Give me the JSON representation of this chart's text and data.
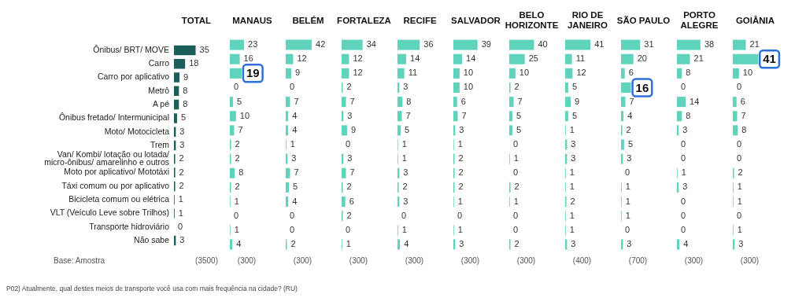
{
  "chart_data": [
    {
      "type": "bar",
      "orientation": "horizontal",
      "title": "TOTAL",
      "xlabel": "(3500)",
      "color": "#1b5e5b",
      "tick_labels": "y",
      "grid": false,
      "legend": false,
      "data_labels": true,
      "categories": [
        "Ônibus/ BRT/ MOVE",
        "Carro",
        "Carro por aplicativo",
        "Metrô",
        "A pé",
        "Ônibus fretado/ Intermunicipal",
        "Moto/ Motocicleta",
        "Trem",
        "Van/ Kombi/ lotação ou lotada/ micro-ônibus/ amarelinho e outros",
        "Moto por aplicativo/ Mototáxi",
        "Táxi comum ou por aplicativo",
        "Bicicleta comum ou elétrica",
        "VLT (Veículo Leve sobre Trilhos)",
        "Transporte hidroviário",
        "Não sabe"
      ],
      "values": [
        35,
        18,
        9,
        8,
        8,
        5,
        3,
        3,
        2,
        2,
        2,
        1,
        1,
        0,
        3
      ],
      "annotations": [
        "Base: Amostra",
        "P02) Atualmente, qual destes meios de transporte você usa com mais frequência na cidade? (RU)"
      ]
    },
    {
      "type": "bar",
      "orientation": "horizontal",
      "title": "MANAUS",
      "xlabel": "(300)",
      "color": "#5fd3bb",
      "tick_labels": false,
      "grid": false,
      "legend": false,
      "categories": [
        "Ônibus/ BRT/ MOVE",
        "Carro",
        "Carro por aplicativo",
        "Metrô",
        "A pé",
        "Ônibus fretado/ Intermunicipal",
        "Moto/ Motocicleta",
        "Trem",
        "Van/ Kombi/ lotação ou lotada/ micro-ônibus/ amarelinho e outros",
        "Moto por aplicativo/ Mototáxi",
        "Táxi comum ou por aplicativo",
        "Bicicleta comum ou elétrica",
        "VLT (Veículo Leve sobre Trilhos)",
        "Transporte hidroviário",
        "Não sabe"
      ],
      "values": [
        23,
        16,
        19,
        0,
        5,
        10,
        7,
        2,
        2,
        8,
        2,
        1,
        0,
        1,
        4
      ],
      "value_labels": [
        "23",
        "16",
        null,
        "0",
        "5",
        "10",
        "7",
        "2",
        "2",
        "8",
        "2",
        "1",
        "0",
        "1",
        "4"
      ],
      "annotations": [
        {
          "text": "19",
          "x": 19,
          "y": "Carro por aplicativo"
        }
      ]
    },
    {
      "type": "bar",
      "orientation": "horizontal",
      "title": "BELÉM",
      "xlabel": "(300)",
      "color": "#5fd3bb",
      "tick_labels": false,
      "grid": false,
      "legend": false,
      "data_labels": true,
      "categories": [
        "Ônibus/ BRT/ MOVE",
        "Carro",
        "Carro por aplicativo",
        "Metrô",
        "A pé",
        "Ônibus fretado/ Intermunicipal",
        "Moto/ Motocicleta",
        "Trem",
        "Van/ Kombi/ lotação ou lotada/ micro-ônibus/ amarelinho e outros",
        "Moto por aplicativo/ Mototáxi",
        "Táxi comum ou por aplicativo",
        "Bicicleta comum ou elétrica",
        "VLT (Veículo Leve sobre Trilhos)",
        "Transporte hidroviário",
        "Não sabe"
      ],
      "values": [
        42,
        12,
        9,
        0,
        7,
        4,
        4,
        1,
        3,
        7,
        5,
        4,
        0,
        0,
        2
      ]
    },
    {
      "type": "bar",
      "orientation": "horizontal",
      "title": "FORTALEZA",
      "xlabel": "(300)",
      "color": "#5fd3bb",
      "tick_labels": false,
      "grid": false,
      "legend": false,
      "data_labels": true,
      "categories": [
        "Ônibus/ BRT/ MOVE",
        "Carro",
        "Carro por aplicativo",
        "Metrô",
        "A pé",
        "Ônibus fretado/ Intermunicipal",
        "Moto/ Motocicleta",
        "Trem",
        "Van/ Kombi/ lotação ou lotada/ micro-ônibus/ amarelinho e outros",
        "Moto por aplicativo/ Mototáxi",
        "Táxi comum ou por aplicativo",
        "Bicicleta comum ou elétrica",
        "VLT (Veículo Leve sobre Trilhos)",
        "Transporte hidroviário",
        "Não sabe"
      ],
      "values": [
        34,
        12,
        12,
        2,
        7,
        3,
        9,
        0,
        3,
        7,
        2,
        6,
        2,
        0,
        1
      ]
    },
    {
      "type": "bar",
      "orientation": "horizontal",
      "title": "RECIFE",
      "xlabel": "(300)",
      "color": "#5fd3bb",
      "tick_labels": false,
      "grid": false,
      "legend": false,
      "data_labels": true,
      "categories": [
        "Ônibus/ BRT/ MOVE",
        "Carro",
        "Carro por aplicativo",
        "Metrô",
        "A pé",
        "Ônibus fretado/ Intermunicipal",
        "Moto/ Motocicleta",
        "Trem",
        "Van/ Kombi/ lotação ou lotada/ micro-ônibus/ amarelinho e outros",
        "Moto por aplicativo/ Mototáxi",
        "Táxi comum ou por aplicativo",
        "Bicicleta comum ou elétrica",
        "VLT (Veículo Leve sobre Trilhos)",
        "Transporte hidroviário",
        "Não sabe"
      ],
      "values": [
        36,
        14,
        11,
        3,
        8,
        7,
        5,
        1,
        1,
        3,
        2,
        3,
        0,
        1,
        4
      ]
    },
    {
      "type": "bar",
      "orientation": "horizontal",
      "title": "SALVADOR",
      "xlabel": "(300)",
      "color": "#5fd3bb",
      "tick_labels": false,
      "grid": false,
      "legend": false,
      "data_labels": true,
      "categories": [
        "Ônibus/ BRT/ MOVE",
        "Carro",
        "Carro por aplicativo",
        "Metrô",
        "A pé",
        "Ônibus fretado/ Intermunicipal",
        "Moto/ Motocicleta",
        "Trem",
        "Van/ Kombi/ lotação ou lotada/ micro-ônibus/ amarelinho e outros",
        "Moto por aplicativo/ Mototáxi",
        "Táxi comum ou por aplicativo",
        "Bicicleta comum ou elétrica",
        "VLT (Veículo Leve sobre Trilhos)",
        "Transporte hidroviário",
        "Não sabe"
      ],
      "values": [
        39,
        14,
        10,
        10,
        6,
        7,
        3,
        1,
        2,
        2,
        2,
        1,
        0,
        1,
        3
      ]
    },
    {
      "type": "bar",
      "orientation": "horizontal",
      "title": "BELO HORIZONTE",
      "xlabel": "(300)",
      "color": "#5fd3bb",
      "tick_labels": false,
      "grid": false,
      "legend": false,
      "data_labels": true,
      "categories": [
        "Ônibus/ BRT/ MOVE",
        "Carro",
        "Carro por aplicativo",
        "Metrô",
        "A pé",
        "Ônibus fretado/ Intermunicipal",
        "Moto/ Motocicleta",
        "Trem",
        "Van/ Kombi/ lotação ou lotada/ micro-ônibus/ amarelinho e outros",
        "Moto por aplicativo/ Mototáxi",
        "Táxi comum ou por aplicativo",
        "Bicicleta comum ou elétrica",
        "VLT (Veículo Leve sobre Trilhos)",
        "Transporte hidroviário",
        "Não sabe"
      ],
      "values": [
        40,
        25,
        10,
        2,
        7,
        5,
        5,
        0,
        1,
        0,
        2,
        1,
        0,
        0,
        2
      ]
    },
    {
      "type": "bar",
      "orientation": "horizontal",
      "title": "RIO DE JANEIRO",
      "xlabel": "(400)",
      "color": "#5fd3bb",
      "tick_labels": false,
      "grid": false,
      "legend": false,
      "data_labels": true,
      "categories": [
        "Ônibus/ BRT/ MOVE",
        "Carro",
        "Carro por aplicativo",
        "Metrô",
        "A pé",
        "Ônibus fretado/ Intermunicipal",
        "Moto/ Motocicleta",
        "Trem",
        "Van/ Kombi/ lotação ou lotada/ micro-ônibus/ amarelinho e outros",
        "Moto por aplicativo/ Mototáxi",
        "Táxi comum ou por aplicativo",
        "Bicicleta comum ou elétrica",
        "VLT (Veículo Leve sobre Trilhos)",
        "Transporte hidroviário",
        "Não sabe"
      ],
      "values": [
        41,
        11,
        12,
        5,
        9,
        5,
        1,
        3,
        3,
        1,
        1,
        2,
        1,
        1,
        3
      ]
    },
    {
      "type": "bar",
      "orientation": "horizontal",
      "title": "SÃO PAULO",
      "xlabel": "(700)",
      "color": "#5fd3bb",
      "tick_labels": false,
      "grid": false,
      "legend": false,
      "categories": [
        "Ônibus/ BRT/ MOVE",
        "Carro",
        "Carro por aplicativo",
        "Metrô",
        "A pé",
        "Ônibus fretado/ Intermunicipal",
        "Moto/ Motocicleta",
        "Trem",
        "Van/ Kombi/ lotação ou lotada/ micro-ônibus/ amarelinho e outros",
        "Moto por aplicativo/ Mototáxi",
        "Táxi comum ou por aplicativo",
        "Bicicleta comum ou elétrica",
        "VLT (Veículo Leve sobre Trilhos)",
        "Transporte hidroviário",
        "Não sabe"
      ],
      "values": [
        31,
        20,
        6,
        16,
        7,
        4,
        2,
        5,
        3,
        0,
        1,
        1,
        1,
        0,
        3
      ],
      "value_labels": [
        "31",
        "20",
        "6",
        null,
        "7",
        "4",
        "2",
        "5",
        "3",
        "0",
        "1",
        "1",
        "1",
        "0",
        "3"
      ],
      "annotations": [
        {
          "text": "16",
          "x": 16,
          "y": "Metrô"
        }
      ]
    },
    {
      "type": "bar",
      "orientation": "horizontal",
      "title": "PORTO ALEGRE",
      "xlabel": "(300)",
      "color": "#5fd3bb",
      "tick_labels": false,
      "grid": false,
      "legend": false,
      "data_labels": true,
      "categories": [
        "Ônibus/ BRT/ MOVE",
        "Carro",
        "Carro por aplicativo",
        "Metrô",
        "A pé",
        "Ônibus fretado/ Intermunicipal",
        "Moto/ Motocicleta",
        "Trem",
        "Van/ Kombi/ lotação ou lotada/ micro-ônibus/ amarelinho e outros",
        "Moto por aplicativo/ Mototáxi",
        "Táxi comum ou por aplicativo",
        "Bicicleta comum ou elétrica",
        "VLT (Veículo Leve sobre Trilhos)",
        "Transporte hidroviário",
        "Não sabe"
      ],
      "values": [
        38,
        21,
        8,
        0,
        14,
        8,
        3,
        0,
        0,
        1,
        3,
        0,
        0,
        0,
        4
      ]
    },
    {
      "type": "bar",
      "orientation": "horizontal",
      "title": "GOIÂNIA",
      "xlabel": "(300)",
      "color": "#5fd3bb",
      "tick_labels": false,
      "grid": false,
      "legend": false,
      "categories": [
        "Ônibus/ BRT/ MOVE",
        "Carro",
        "Carro por aplicativo",
        "Metrô",
        "A pé",
        "Ônibus fretado/ Intermunicipal",
        "Moto/ Motocicleta",
        "Trem",
        "Van/ Kombi/ lotação ou lotada/ micro-ônibus/ amarelinho e outros",
        "Moto por aplicativo/ Mototáxi",
        "Táxi comum ou por aplicativo",
        "Bicicleta comum ou elétrica",
        "VLT (Veículo Leve sobre Trilhos)",
        "Transporte hidroviário",
        "Não sabe"
      ],
      "values": [
        21,
        41,
        10,
        0,
        6,
        7,
        8,
        0,
        0,
        2,
        1,
        1,
        0,
        1,
        3
      ],
      "value_labels": [
        "21",
        null,
        "10",
        "0",
        "6",
        "7",
        "8",
        "0",
        "0",
        "2",
        "1",
        "1",
        "0",
        "1",
        "3"
      ],
      "annotations": [
        {
          "text": "41",
          "x": 41,
          "y": "Carro"
        }
      ]
    }
  ]
}
